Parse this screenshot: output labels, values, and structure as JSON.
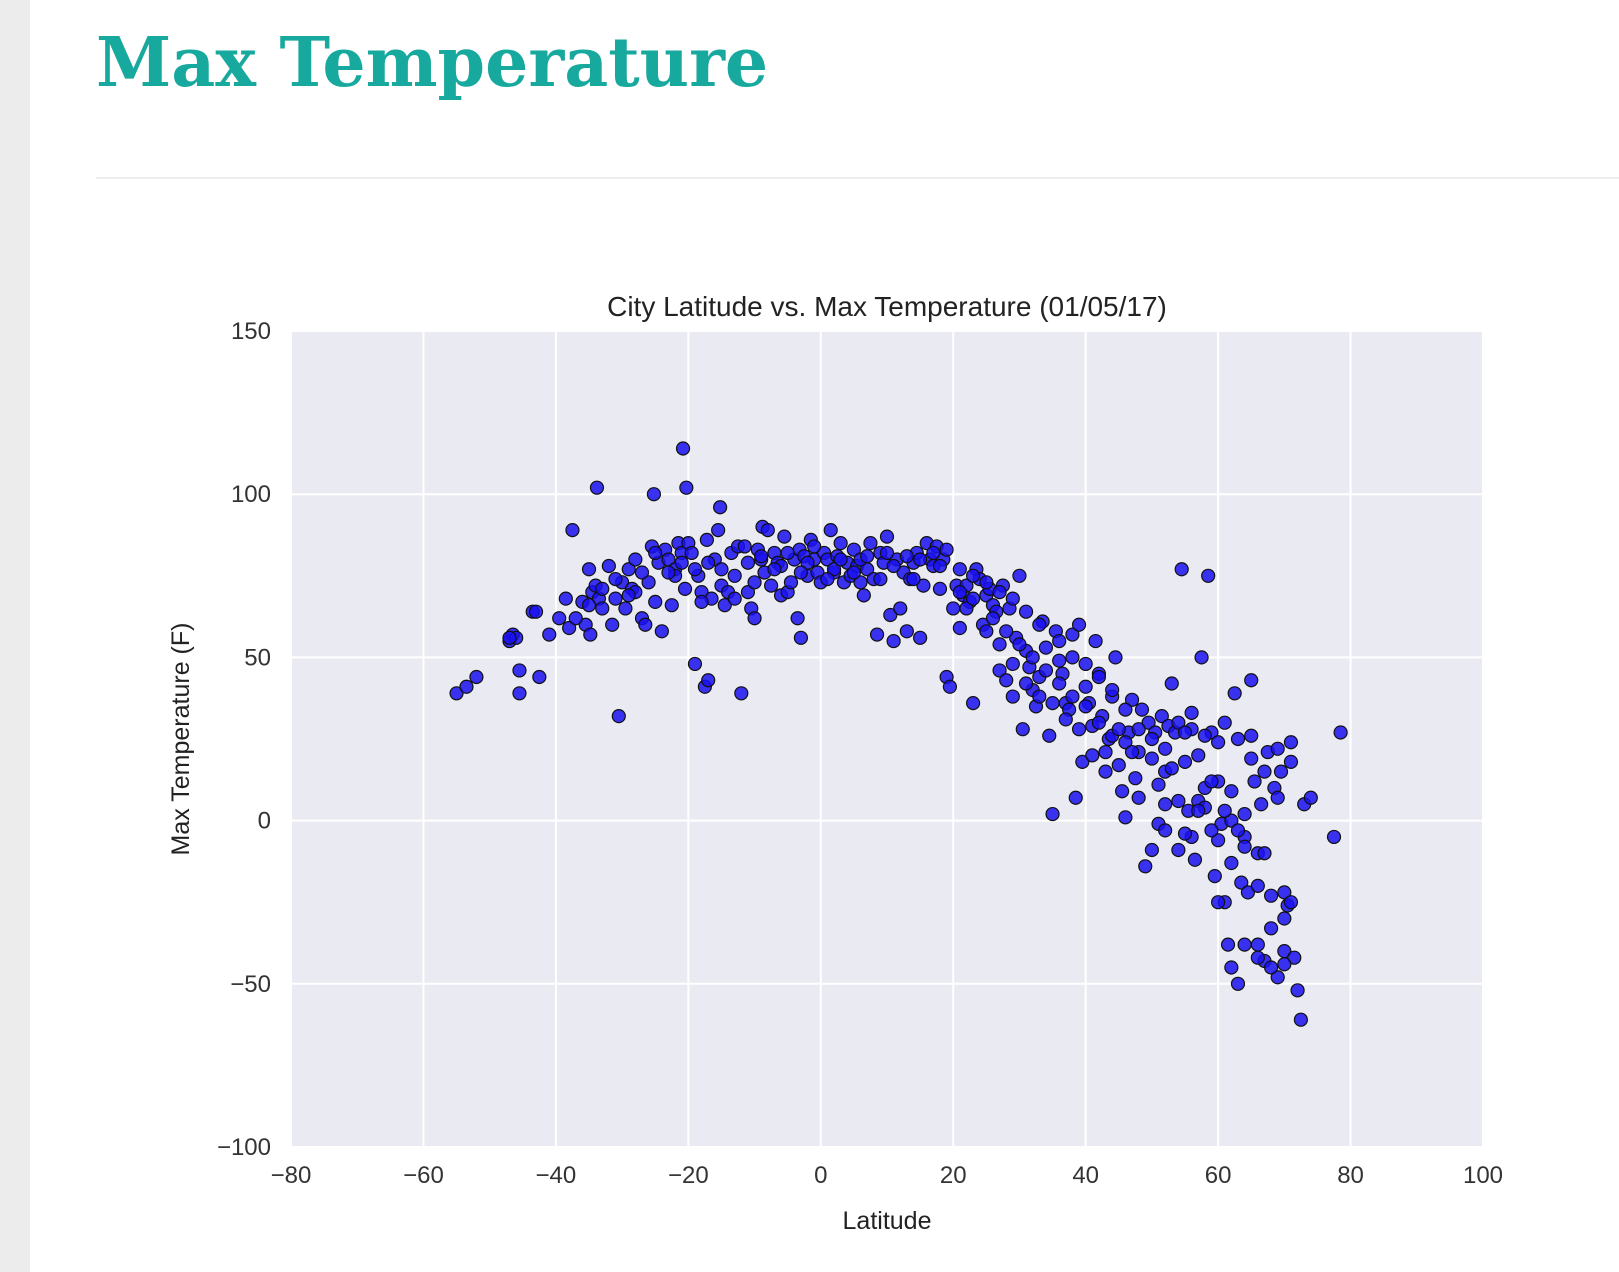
{
  "page": {
    "title": "Max Temperature"
  },
  "chart_data": {
    "type": "scatter",
    "title": "City Latitude vs. Max Temperature (01/05/17)",
    "xlabel": "Latitude",
    "ylabel": "Max Temperature (F)",
    "xlim": [
      -80,
      100
    ],
    "ylim": [
      -100,
      150
    ],
    "xticks": [
      -80,
      -60,
      -40,
      -20,
      0,
      20,
      40,
      60,
      80,
      100
    ],
    "yticks": [
      -100,
      -50,
      0,
      50,
      100,
      150
    ],
    "xtick_labels": [
      "−80",
      "−60",
      "−40",
      "−20",
      "0",
      "20",
      "40",
      "60",
      "80",
      "100"
    ],
    "ytick_labels": [
      "−100",
      "−50",
      "0",
      "50",
      "100",
      "150"
    ],
    "grid": true,
    "background_color": "#eaeaf2",
    "marker_color": "#1a10f0",
    "points": [
      [
        -55,
        39
      ],
      [
        -53.5,
        41
      ],
      [
        -52,
        44
      ],
      [
        -47,
        55
      ],
      [
        -46.5,
        57
      ],
      [
        -46,
        56
      ],
      [
        -45.5,
        46
      ],
      [
        -45.5,
        39
      ],
      [
        -43.5,
        64
      ],
      [
        -42.5,
        44
      ],
      [
        -41,
        57
      ],
      [
        -39.5,
        62
      ],
      [
        -38.5,
        68
      ],
      [
        -38,
        59
      ],
      [
        -37.5,
        89
      ],
      [
        -36,
        67
      ],
      [
        -35.5,
        60
      ],
      [
        -35,
        77
      ],
      [
        -34.8,
        57
      ],
      [
        -34.5,
        70
      ],
      [
        -34,
        72
      ],
      [
        -33.8,
        102
      ],
      [
        -33.5,
        68
      ],
      [
        -33,
        65
      ],
      [
        -32,
        78
      ],
      [
        -31.5,
        60
      ],
      [
        -31,
        68
      ],
      [
        -30.5,
        32
      ],
      [
        -30,
        73
      ],
      [
        -29.5,
        65
      ],
      [
        -29,
        77
      ],
      [
        -28.5,
        71
      ],
      [
        -28,
        80
      ],
      [
        -27,
        62
      ],
      [
        -26.5,
        60
      ],
      [
        -26,
        73
      ],
      [
        -25.5,
        84
      ],
      [
        -25.2,
        100
      ],
      [
        -25,
        67
      ],
      [
        -24.5,
        79
      ],
      [
        -24,
        58
      ],
      [
        -23.5,
        83
      ],
      [
        -23,
        80
      ],
      [
        -22.5,
        66
      ],
      [
        -22,
        77
      ],
      [
        -21.5,
        85
      ],
      [
        -21,
        82
      ],
      [
        -20.8,
        114
      ],
      [
        -20.5,
        71
      ],
      [
        -20.3,
        102
      ],
      [
        -20,
        85
      ],
      [
        -19.5,
        82
      ],
      [
        -19,
        48
      ],
      [
        -18.5,
        75
      ],
      [
        -18,
        70
      ],
      [
        -17.5,
        41
      ],
      [
        -17.2,
        86
      ],
      [
        -17,
        43
      ],
      [
        -16.5,
        68
      ],
      [
        -16,
        80
      ],
      [
        -15.5,
        89
      ],
      [
        -15.2,
        96
      ],
      [
        -15,
        72
      ],
      [
        -14.5,
        66
      ],
      [
        -14,
        70
      ],
      [
        -13.5,
        82
      ],
      [
        -13,
        68
      ],
      [
        -12.5,
        84
      ],
      [
        -12,
        39
      ],
      [
        -11.5,
        84
      ],
      [
        -11,
        70
      ],
      [
        -10.5,
        65
      ],
      [
        -10,
        62
      ],
      [
        -9.5,
        83
      ],
      [
        -9,
        80
      ],
      [
        -8.8,
        90
      ],
      [
        -8.5,
        76
      ],
      [
        -8,
        89
      ],
      [
        -7.5,
        72
      ],
      [
        -7,
        82
      ],
      [
        -6.5,
        79
      ],
      [
        -6,
        69
      ],
      [
        -5.5,
        87
      ],
      [
        -5,
        70
      ],
      [
        -4.5,
        73
      ],
      [
        -4,
        80
      ],
      [
        -3.5,
        62
      ],
      [
        -3.2,
        83
      ],
      [
        -3,
        56
      ],
      [
        -2.5,
        81
      ],
      [
        -2,
        75
      ],
      [
        -1.5,
        86
      ],
      [
        -1,
        80
      ],
      [
        -0.5,
        76
      ],
      [
        0,
        73
      ],
      [
        0.5,
        82
      ],
      [
        1,
        80
      ],
      [
        1.5,
        89
      ],
      [
        2,
        76
      ],
      [
        2.5,
        81
      ],
      [
        3,
        85
      ],
      [
        3.5,
        73
      ],
      [
        4,
        79
      ],
      [
        4.5,
        75
      ],
      [
        5,
        83
      ],
      [
        5.5,
        78
      ],
      [
        6,
        73
      ],
      [
        6.5,
        69
      ],
      [
        7,
        77
      ],
      [
        7.5,
        85
      ],
      [
        8,
        74
      ],
      [
        8.5,
        57
      ],
      [
        9,
        82
      ],
      [
        9.5,
        79
      ],
      [
        10,
        87
      ],
      [
        10.5,
        63
      ],
      [
        11,
        55
      ],
      [
        11.5,
        80
      ],
      [
        12,
        65
      ],
      [
        12.5,
        76
      ],
      [
        13,
        58
      ],
      [
        13.5,
        74
      ],
      [
        14,
        79
      ],
      [
        14.5,
        82
      ],
      [
        15,
        56
      ],
      [
        15.5,
        72
      ],
      [
        16,
        85
      ],
      [
        16.5,
        80
      ],
      [
        17,
        78
      ],
      [
        17.5,
        84
      ],
      [
        18,
        71
      ],
      [
        18.5,
        80
      ],
      [
        19,
        44
      ],
      [
        19.5,
        41
      ],
      [
        20,
        65
      ],
      [
        20.5,
        72
      ],
      [
        21,
        59
      ],
      [
        21.5,
        69
      ],
      [
        22,
        72
      ],
      [
        22.5,
        67
      ],
      [
        23,
        36
      ],
      [
        23.5,
        77
      ],
      [
        24,
        74
      ],
      [
        24.5,
        60
      ],
      [
        25,
        69
      ],
      [
        25.5,
        71
      ],
      [
        26,
        66
      ],
      [
        26.5,
        64
      ],
      [
        27,
        46
      ],
      [
        27.5,
        72
      ],
      [
        28,
        43
      ],
      [
        28.5,
        65
      ],
      [
        29,
        38
      ],
      [
        29.5,
        56
      ],
      [
        30,
        75
      ],
      [
        30.5,
        28
      ],
      [
        31,
        52
      ],
      [
        31.5,
        47
      ],
      [
        32,
        40
      ],
      [
        32.5,
        35
      ],
      [
        33,
        44
      ],
      [
        33.5,
        61
      ],
      [
        34,
        53
      ],
      [
        34.5,
        26
      ],
      [
        35,
        2
      ],
      [
        35.5,
        58
      ],
      [
        36,
        49
      ],
      [
        36.5,
        45
      ],
      [
        37,
        36
      ],
      [
        37.5,
        34
      ],
      [
        38,
        57
      ],
      [
        38.5,
        7
      ],
      [
        39,
        60
      ],
      [
        39.5,
        18
      ],
      [
        40,
        41
      ],
      [
        40.5,
        36
      ],
      [
        41,
        29
      ],
      [
        41.5,
        55
      ],
      [
        42,
        45
      ],
      [
        42.5,
        32
      ],
      [
        43,
        21
      ],
      [
        43.5,
        25
      ],
      [
        44,
        38
      ],
      [
        44.5,
        50
      ],
      [
        45,
        17
      ],
      [
        45.5,
        9
      ],
      [
        46,
        1
      ],
      [
        46.5,
        27
      ],
      [
        47,
        37
      ],
      [
        47.5,
        13
      ],
      [
        48,
        21
      ],
      [
        48.5,
        34
      ],
      [
        49,
        -14
      ],
      [
        49.5,
        30
      ],
      [
        50,
        19
      ],
      [
        50.5,
        27
      ],
      [
        51,
        -1
      ],
      [
        51.5,
        32
      ],
      [
        52,
        5
      ],
      [
        52.5,
        29
      ],
      [
        53,
        42
      ],
      [
        53.5,
        27
      ],
      [
        54,
        -9
      ],
      [
        54.5,
        77
      ],
      [
        55,
        18
      ],
      [
        55.5,
        3
      ],
      [
        56,
        33
      ],
      [
        56.5,
        -12
      ],
      [
        57,
        6
      ],
      [
        57.5,
        50
      ],
      [
        58,
        4
      ],
      [
        58.5,
        75
      ],
      [
        59,
        27
      ],
      [
        59.5,
        -17
      ],
      [
        60,
        24
      ],
      [
        60.5,
        -1
      ],
      [
        61,
        -25
      ],
      [
        61.5,
        -38
      ],
      [
        62,
        9
      ],
      [
        62.5,
        39
      ],
      [
        63,
        -50
      ],
      [
        63.5,
        -19
      ],
      [
        64,
        2
      ],
      [
        64.5,
        -22
      ],
      [
        65,
        43
      ],
      [
        65.5,
        12
      ],
      [
        66,
        -38
      ],
      [
        66.5,
        5
      ],
      [
        67,
        -43
      ],
      [
        67.5,
        21
      ],
      [
        68,
        -33
      ],
      [
        68.5,
        10
      ],
      [
        69,
        -48
      ],
      [
        69.5,
        15
      ],
      [
        70,
        -40
      ],
      [
        70.5,
        -26
      ],
      [
        71,
        24
      ],
      [
        71.5,
        -42
      ],
      [
        72,
        -52
      ],
      [
        72.5,
        -61
      ],
      [
        73,
        5
      ],
      [
        74,
        7
      ],
      [
        77.5,
        -5
      ],
      [
        78.5,
        27
      ],
      [
        -33,
        71
      ],
      [
        -28,
        70
      ],
      [
        -22,
        75
      ],
      [
        -18,
        67
      ],
      [
        -10,
        73
      ],
      [
        -6,
        78
      ],
      [
        -2,
        79
      ],
      [
        2,
        77
      ],
      [
        6,
        80
      ],
      [
        10,
        82
      ],
      [
        14,
        74
      ],
      [
        18,
        78
      ],
      [
        22,
        65
      ],
      [
        26,
        62
      ],
      [
        28,
        58
      ],
      [
        30,
        54
      ],
      [
        32,
        50
      ],
      [
        34,
        46
      ],
      [
        36,
        42
      ],
      [
        38,
        38
      ],
      [
        40,
        35
      ],
      [
        42,
        30
      ],
      [
        44,
        26
      ],
      [
        46,
        24
      ],
      [
        48,
        28
      ],
      [
        50,
        25
      ],
      [
        52,
        22
      ],
      [
        54,
        30
      ],
      [
        56,
        28
      ],
      [
        58,
        26
      ],
      [
        60,
        12
      ],
      [
        62,
        0
      ],
      [
        64,
        -5
      ],
      [
        66,
        -10
      ],
      [
        68,
        -23
      ],
      [
        70,
        -30
      ],
      [
        52,
        -3
      ],
      [
        54,
        6
      ],
      [
        56,
        -5
      ],
      [
        58,
        10
      ],
      [
        60,
        -6
      ],
      [
        62,
        -13
      ],
      [
        64,
        -8
      ],
      [
        66,
        -20
      ],
      [
        68,
        -45
      ],
      [
        70,
        -44
      ],
      [
        46,
        34
      ],
      [
        44,
        40
      ],
      [
        42,
        44
      ],
      [
        40,
        48
      ],
      [
        38,
        50
      ],
      [
        36,
        55
      ],
      [
        33,
        60
      ],
      [
        31,
        64
      ],
      [
        29,
        68
      ],
      [
        27,
        70
      ],
      [
        25,
        73
      ],
      [
        23,
        75
      ],
      [
        21,
        77
      ],
      [
        19,
        83
      ],
      [
        17,
        82
      ],
      [
        15,
        80
      ],
      [
        13,
        81
      ],
      [
        11,
        78
      ],
      [
        9,
        74
      ],
      [
        7,
        81
      ],
      [
        5,
        76
      ],
      [
        3,
        80
      ],
      [
        1,
        74
      ],
      [
        -1,
        84
      ],
      [
        -3,
        76
      ],
      [
        -5,
        82
      ],
      [
        -7,
        77
      ],
      [
        -9,
        81
      ],
      [
        -11,
        79
      ],
      [
        -13,
        75
      ],
      [
        -15,
        77
      ],
      [
        -17,
        79
      ],
      [
        -19,
        77
      ],
      [
        -21,
        79
      ],
      [
        -23,
        76
      ],
      [
        -25,
        82
      ],
      [
        -27,
        76
      ],
      [
        -29,
        69
      ],
      [
        -31,
        74
      ],
      [
        -35,
        66
      ],
      [
        -37,
        62
      ],
      [
        -43,
        64
      ],
      [
        -47,
        56
      ],
      [
        52,
        15
      ],
      [
        55,
        -4
      ],
      [
        57,
        3
      ],
      [
        59,
        12
      ],
      [
        61,
        30
      ],
      [
        63,
        25
      ],
      [
        65,
        19
      ],
      [
        67,
        -10
      ],
      [
        69,
        7
      ],
      [
        71,
        18
      ],
      [
        50,
        -9
      ],
      [
        48,
        7
      ],
      [
        47,
        21
      ],
      [
        45,
        28
      ],
      [
        43,
        15
      ],
      [
        41,
        20
      ],
      [
        39,
        28
      ],
      [
        37,
        31
      ],
      [
        35,
        36
      ],
      [
        33,
        38
      ],
      [
        31,
        42
      ],
      [
        29,
        48
      ],
      [
        27,
        54
      ],
      [
        25,
        58
      ],
      [
        23,
        68
      ],
      [
        21,
        70
      ],
      [
        55,
        27
      ],
      [
        53,
        16
      ],
      [
        51,
        11
      ],
      [
        57,
        20
      ],
      [
        59,
        -3
      ],
      [
        61,
        3
      ],
      [
        63,
        -3
      ],
      [
        65,
        26
      ],
      [
        67,
        15
      ],
      [
        69,
        22
      ],
      [
        70,
        -22
      ],
      [
        71,
        -25
      ],
      [
        66,
        -42
      ],
      [
        64,
        -38
      ],
      [
        62,
        -45
      ],
      [
        60,
        -25
      ]
    ]
  }
}
